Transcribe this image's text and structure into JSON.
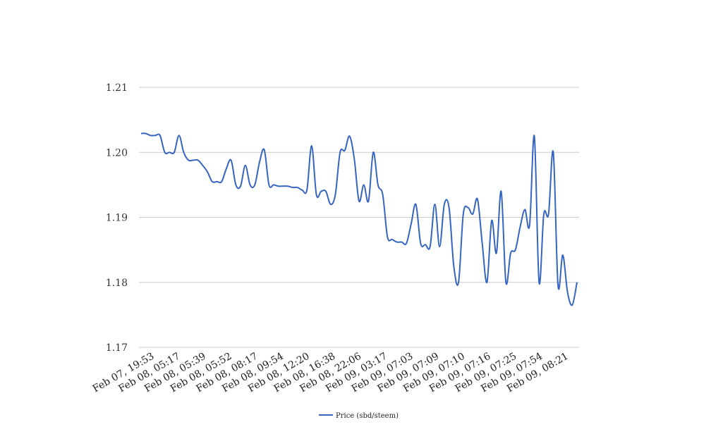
{
  "chart_data": {
    "type": "line",
    "title": "",
    "xlabel": "",
    "ylabel": "",
    "ylim": [
      1.17,
      1.21
    ],
    "y_ticks": [
      "1.21",
      "1.20",
      "1.19",
      "1.18",
      "1.17"
    ],
    "y_tick_values": [
      1.21,
      1.2,
      1.19,
      1.18,
      1.17
    ],
    "x_tick_labels": [
      "Feb 07, 19:53",
      "Feb 08, 05:17",
      "Feb 08, 05:39",
      "Feb 08, 05:52",
      "Feb 08, 08:17",
      "Feb 08, 09:54",
      "Feb 08, 12:20",
      "Feb 08, 16:38",
      "Feb 08, 22:06",
      "Feb 09, 03:17",
      "Feb 09, 07:03",
      "Feb 09, 07:09",
      "Feb 09, 07:10",
      "Feb 09, 07:16",
      "Feb 09, 07:25",
      "Feb 09, 07:54",
      "Feb 09, 08:21"
    ],
    "grid": true,
    "legend_position": "bottom-center",
    "colors": {
      "line": "#3565c0",
      "grid": "#cccccc"
    },
    "series": [
      {
        "name": "Price (sbd/steem)",
        "values": [
          1.2029,
          1.2029,
          1.2026,
          1.2026,
          1.2026,
          1.2,
          1.2,
          1.2,
          1.2026,
          1.2,
          1.1988,
          1.1988,
          1.1988,
          1.198,
          1.197,
          1.1955,
          1.1955,
          1.1955,
          1.1975,
          1.1988,
          1.195,
          1.1948,
          1.198,
          1.195,
          1.195,
          1.1985,
          1.2004,
          1.195,
          1.195,
          1.1948,
          1.1948,
          1.1948,
          1.1946,
          1.1946,
          1.1942,
          1.1942,
          1.201,
          1.1935,
          1.194,
          1.194,
          1.192,
          1.1935,
          1.2,
          1.2003,
          1.2025,
          1.199,
          1.1925,
          1.195,
          1.1925,
          1.2,
          1.195,
          1.1935,
          1.187,
          1.1866,
          1.1862,
          1.1862,
          1.186,
          1.189,
          1.192,
          1.186,
          1.1858,
          1.1855,
          1.192,
          1.1855,
          1.192,
          1.1915,
          1.1825,
          1.18,
          1.1905,
          1.1915,
          1.1905,
          1.1928,
          1.186,
          1.18,
          1.1895,
          1.1845,
          1.194,
          1.18,
          1.1845,
          1.185,
          1.1885,
          1.1912,
          1.1888,
          1.2025,
          1.18,
          1.1905,
          1.1905,
          1.2,
          1.1795,
          1.1842,
          1.1785,
          1.1765,
          1.18
        ]
      }
    ]
  }
}
